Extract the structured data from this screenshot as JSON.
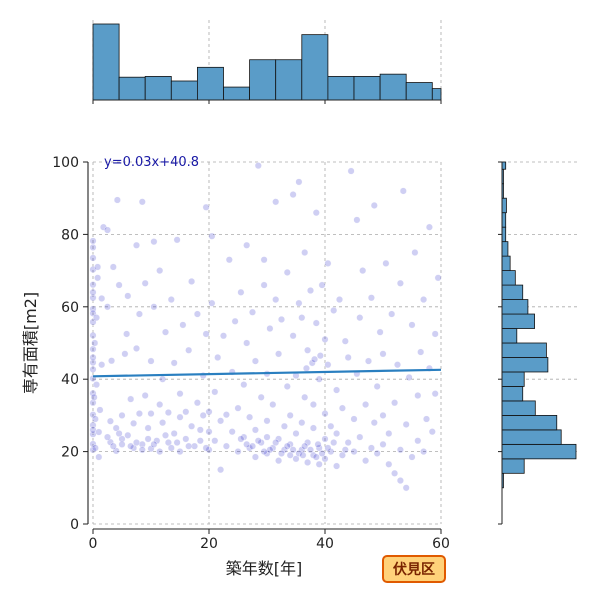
{
  "chart_data": {
    "type": "scatter",
    "xlabel": "築年数[年]",
    "ylabel": "専有面積[m2]",
    "xlim": [
      0,
      60
    ],
    "ylim": [
      0,
      100
    ],
    "x_ticks": [
      0,
      20,
      40,
      60
    ],
    "y_ticks": [
      0,
      20,
      40,
      60,
      80,
      100
    ],
    "grid": true,
    "regression": {
      "label": "y=0.03x+40.8",
      "slope": 0.03,
      "intercept": 40.8,
      "x_range": [
        0,
        60
      ],
      "color": "#2a7fc0"
    },
    "point_color": "#2626c8",
    "hist_color": "#5a9cc8",
    "badge": {
      "label": "伏見区",
      "fill": "#ffd27a",
      "stroke": "#e05a00"
    },
    "marginal_x_hist": {
      "bin_edges": [
        0,
        4.5,
        9,
        13.5,
        18,
        22.5,
        27,
        31.5,
        36,
        40.5,
        45,
        49.5,
        54,
        58.5,
        60
      ],
      "counts": [
        100,
        30,
        31,
        25,
        43,
        17,
        53,
        53,
        86,
        31,
        31,
        34,
        23,
        15
      ]
    },
    "marginal_y_hist": {
      "bin_edges": [
        10,
        14,
        18,
        22,
        26,
        30,
        34,
        38,
        42,
        46,
        50,
        54,
        58,
        62,
        66,
        70,
        74,
        78,
        82,
        86,
        90,
        94,
        98,
        102
      ],
      "counts": [
        2,
        30,
        100,
        80,
        74,
        45,
        28,
        30,
        62,
        60,
        20,
        44,
        35,
        28,
        18,
        11,
        8,
        5,
        5,
        6,
        2,
        2,
        5
      ]
    },
    "points": [
      [
        0,
        20.5
      ],
      [
        0,
        22.1
      ],
      [
        0,
        24.8
      ],
      [
        0,
        27.3
      ],
      [
        0,
        30.2
      ],
      [
        0,
        33.5
      ],
      [
        0,
        36.1
      ],
      [
        0,
        40.2
      ],
      [
        0,
        44.6
      ],
      [
        0,
        48.3
      ],
      [
        0,
        52.1
      ],
      [
        0,
        55.8
      ],
      [
        0,
        59.4
      ],
      [
        0,
        62.5
      ],
      [
        0,
        66.1
      ],
      [
        0,
        70.3
      ],
      [
        0,
        73.5
      ],
      [
        0,
        76.4
      ],
      [
        0,
        78.2
      ],
      [
        0,
        64.0
      ],
      [
        0,
        58.2
      ],
      [
        0,
        42.7
      ],
      [
        0,
        46.0
      ],
      [
        0,
        26.0
      ],
      [
        0.4,
        21.0
      ],
      [
        0.4,
        29.0
      ],
      [
        0.6,
        38.5
      ],
      [
        0.6,
        57.0
      ],
      [
        0.8,
        68.0
      ],
      [
        0.8,
        71.0
      ],
      [
        0.2,
        35.0
      ],
      [
        0.3,
        50.0
      ],
      [
        1,
        18.5
      ],
      [
        1,
        25.4
      ],
      [
        1.2,
        31.5
      ],
      [
        1.5,
        44.0
      ],
      [
        1.5,
        62.3
      ],
      [
        1.8,
        82.0
      ],
      [
        2.5,
        81.2
      ],
      [
        2.5,
        60.0
      ],
      [
        3,
        22.6
      ],
      [
        3,
        28.4
      ],
      [
        3.2,
        45.1
      ],
      [
        3.5,
        71.0
      ],
      [
        4,
        20.2
      ],
      [
        4,
        26.5
      ],
      [
        4.2,
        89.5
      ],
      [
        4.5,
        66.0
      ],
      [
        5,
        23.5
      ],
      [
        5,
        30.0
      ],
      [
        5.5,
        47.0
      ],
      [
        5.8,
        52.5
      ],
      [
        6,
        24.5
      ],
      [
        6,
        63.0
      ],
      [
        6.5,
        34.5
      ],
      [
        7,
        21.0
      ],
      [
        7,
        27.8
      ],
      [
        7.5,
        48.5
      ],
      [
        7.5,
        77.0
      ],
      [
        8,
        30.5
      ],
      [
        8,
        58.0
      ],
      [
        8.5,
        22.0
      ],
      [
        8.5,
        89.0
      ],
      [
        9,
        35.5
      ],
      [
        9,
        66.5
      ],
      [
        9.5,
        26.5
      ],
      [
        10,
        20.8
      ],
      [
        10,
        30.5
      ],
      [
        10,
        45.0
      ],
      [
        10.5,
        60.0
      ],
      [
        10.5,
        78.0
      ],
      [
        11,
        23.0
      ],
      [
        11.5,
        33.0
      ],
      [
        11.5,
        70.0
      ],
      [
        12,
        28.0
      ],
      [
        12,
        40.0
      ],
      [
        12.5,
        53.0
      ],
      [
        13,
        22.5
      ],
      [
        13,
        30.8
      ],
      [
        13.5,
        62.0
      ],
      [
        14,
        25.0
      ],
      [
        14,
        44.5
      ],
      [
        14.5,
        78.5
      ],
      [
        15,
        20.0
      ],
      [
        15,
        29.5
      ],
      [
        15,
        36.0
      ],
      [
        15.5,
        55.0
      ],
      [
        16,
        23.5
      ],
      [
        16,
        31.0
      ],
      [
        16.5,
        48.0
      ],
      [
        17,
        27.0
      ],
      [
        17,
        67.0
      ],
      [
        17.5,
        21.5
      ],
      [
        18,
        33.5
      ],
      [
        18,
        58.0
      ],
      [
        18.5,
        26.0
      ],
      [
        19,
        30.0
      ],
      [
        19,
        41.0
      ],
      [
        19.5,
        52.5
      ],
      [
        19.5,
        87.5
      ],
      [
        20,
        20.5
      ],
      [
        20,
        25.5
      ],
      [
        20,
        31.0
      ],
      [
        20.5,
        61.0
      ],
      [
        20.5,
        79.5
      ],
      [
        21,
        23.0
      ],
      [
        21,
        36.5
      ],
      [
        21.5,
        46.0
      ],
      [
        22,
        28.5
      ],
      [
        22,
        15.0
      ],
      [
        22.5,
        52.0
      ],
      [
        23,
        21.5
      ],
      [
        23,
        30.2
      ],
      [
        23.5,
        73.0
      ],
      [
        24,
        25.5
      ],
      [
        24,
        42.0
      ],
      [
        24.5,
        56.0
      ],
      [
        25,
        20.0
      ],
      [
        25,
        32.0
      ],
      [
        25.5,
        64.0
      ],
      [
        26,
        24.0
      ],
      [
        26,
        38.5
      ],
      [
        26.5,
        50.0
      ],
      [
        26.5,
        77.0
      ],
      [
        27,
        21.0
      ],
      [
        27,
        29.5
      ],
      [
        27.5,
        58.5
      ],
      [
        28,
        18.5
      ],
      [
        28,
        26.0
      ],
      [
        28,
        45.0
      ],
      [
        28.5,
        99.0
      ],
      [
        29,
        22.5
      ],
      [
        29,
        35.0
      ],
      [
        29.5,
        66.0
      ],
      [
        29.5,
        73.0
      ],
      [
        30,
        19.5
      ],
      [
        30,
        24.0
      ],
      [
        30,
        28.5
      ],
      [
        30,
        41.5
      ],
      [
        30.5,
        54.0
      ],
      [
        31,
        21.0
      ],
      [
        31,
        33.0
      ],
      [
        31.5,
        62.0
      ],
      [
        31.5,
        89.0
      ],
      [
        32,
        17.5
      ],
      [
        32,
        23.5
      ],
      [
        32,
        47.0
      ],
      [
        32.5,
        56.5
      ],
      [
        33,
        20.5
      ],
      [
        33,
        27.0
      ],
      [
        33.5,
        38.0
      ],
      [
        33.5,
        69.5
      ],
      [
        34,
        19.0
      ],
      [
        34,
        22.0
      ],
      [
        34,
        30.0
      ],
      [
        34.5,
        52.0
      ],
      [
        34.5,
        91.0
      ],
      [
        35,
        18.0
      ],
      [
        35,
        25.0
      ],
      [
        35,
        41.0
      ],
      [
        35.5,
        61.0
      ],
      [
        35.5,
        94.5
      ],
      [
        36,
        20.5
      ],
      [
        36,
        28.0
      ],
      [
        36,
        57.0
      ],
      [
        36.5,
        35.0
      ],
      [
        36.5,
        75.0
      ],
      [
        37,
        17.0
      ],
      [
        37,
        22.5
      ],
      [
        37,
        48.0
      ],
      [
        37.5,
        64.5
      ],
      [
        38,
        19.0
      ],
      [
        38,
        26.5
      ],
      [
        38,
        33.0
      ],
      [
        38.5,
        55.5
      ],
      [
        38.5,
        86.0
      ],
      [
        39,
        16.5
      ],
      [
        39,
        21.0
      ],
      [
        39,
        40.0
      ],
      [
        39.5,
        66.0
      ],
      [
        40,
        18.0
      ],
      [
        40,
        23.5
      ],
      [
        40,
        30.5
      ],
      [
        40,
        51.0
      ],
      [
        40.5,
        44.0
      ],
      [
        40.5,
        72.0
      ],
      [
        41,
        20.0
      ],
      [
        41,
        27.0
      ],
      [
        41.5,
        59.0
      ],
      [
        42,
        16.0
      ],
      [
        42,
        25.0
      ],
      [
        42,
        37.0
      ],
      [
        42.5,
        62.0
      ],
      [
        43,
        19.0
      ],
      [
        43,
        32.0
      ],
      [
        43.5,
        50.5
      ],
      [
        44,
        22.5
      ],
      [
        44,
        46.0
      ],
      [
        44.5,
        97.5
      ],
      [
        45,
        20.0
      ],
      [
        45,
        29.0
      ],
      [
        45.5,
        41.5
      ],
      [
        45.5,
        84.0
      ],
      [
        46,
        24.0
      ],
      [
        46,
        57.0
      ],
      [
        46.5,
        70.0
      ],
      [
        47,
        17.5
      ],
      [
        47,
        33.0
      ],
      [
        47.5,
        45.0
      ],
      [
        48,
        21.0
      ],
      [
        48,
        62.5
      ],
      [
        48.5,
        28.0
      ],
      [
        48.5,
        88.0
      ],
      [
        49,
        19.5
      ],
      [
        49,
        38.0
      ],
      [
        49.5,
        53.0
      ],
      [
        50,
        22.0
      ],
      [
        50,
        30.0
      ],
      [
        50,
        47.0
      ],
      [
        50.5,
        72.0
      ],
      [
        51,
        16.5
      ],
      [
        51,
        25.0
      ],
      [
        51.5,
        58.0
      ],
      [
        52,
        14.0
      ],
      [
        52,
        33.5
      ],
      [
        52.5,
        44.0
      ],
      [
        53,
        12.0
      ],
      [
        53,
        20.5
      ],
      [
        53,
        66.5
      ],
      [
        53.5,
        92.0
      ],
      [
        54,
        10.0
      ],
      [
        54,
        27.5
      ],
      [
        54.5,
        40.5
      ],
      [
        55,
        18.5
      ],
      [
        55,
        55.0
      ],
      [
        55.5,
        75.0
      ],
      [
        56,
        23.0
      ],
      [
        56,
        35.5
      ],
      [
        56.5,
        47.5
      ],
      [
        57,
        20.0
      ],
      [
        57,
        62.0
      ],
      [
        57.5,
        29.0
      ],
      [
        58,
        43.0
      ],
      [
        58,
        82.0
      ],
      [
        58.5,
        25.5
      ],
      [
        59,
        36.0
      ],
      [
        59,
        52.5
      ],
      [
        59.5,
        68.0
      ],
      [
        26.5,
        22.0
      ],
      [
        27.5,
        21.5
      ],
      [
        28.5,
        23.0
      ],
      [
        30.5,
        20.5
      ],
      [
        31.5,
        22.5
      ],
      [
        33.5,
        21.5
      ],
      [
        35.5,
        19.5
      ],
      [
        36.5,
        21.5
      ],
      [
        37.5,
        20.5
      ],
      [
        38.5,
        18.5
      ],
      [
        39.5,
        19.5
      ],
      [
        40.5,
        21.0
      ],
      [
        37.8,
        44.5
      ],
      [
        38.2,
        45.5
      ],
      [
        36.8,
        43.0
      ],
      [
        39.2,
        46.5
      ],
      [
        6.5,
        21.5
      ],
      [
        7.5,
        22.5
      ],
      [
        8.5,
        20.5
      ],
      [
        9.5,
        23.5
      ],
      [
        10.5,
        22.0
      ],
      [
        11.5,
        20.0
      ],
      [
        12.5,
        24.5
      ],
      [
        13.5,
        21.0
      ],
      [
        5.0,
        22.0
      ],
      [
        4.5,
        25.0
      ],
      [
        3.5,
        21.5
      ],
      [
        2.5,
        24.0
      ],
      [
        14.5,
        22.5
      ],
      [
        16.5,
        21.5
      ],
      [
        18.5,
        23.0
      ],
      [
        19.5,
        21.0
      ],
      [
        25.5,
        23.5
      ],
      [
        29.5,
        20.0
      ],
      [
        32.5,
        19.5
      ],
      [
        34.5,
        20.5
      ],
      [
        36.2,
        19.0
      ],
      [
        38.8,
        22.0
      ],
      [
        41.5,
        22.5
      ],
      [
        43.5,
        20.5
      ]
    ]
  }
}
